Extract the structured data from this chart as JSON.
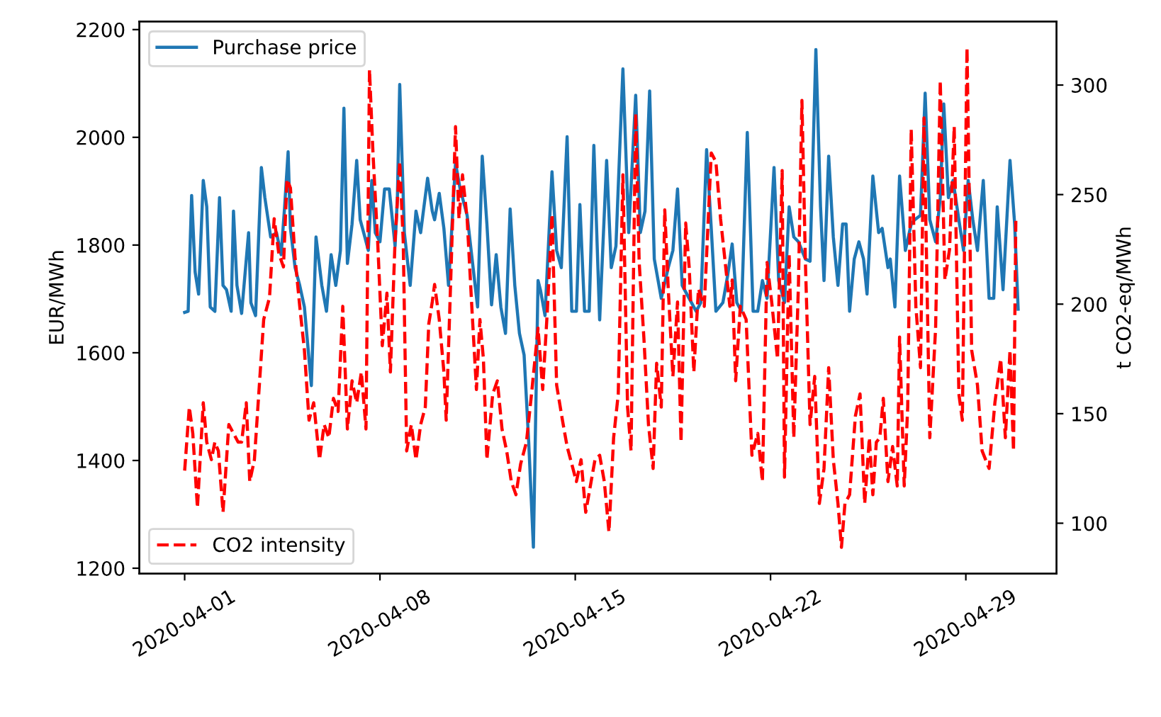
{
  "chart_data": {
    "type": "line",
    "ylabel": "EUR/MWh",
    "y2label": "t CO2-eq/MWh",
    "xlim": [
      "2020-03-30T09:00",
      "2020-05-02T06:00"
    ],
    "xticks": [
      "2020-04-01",
      "2020-04-08",
      "2020-04-15",
      "2020-04-22",
      "2020-04-29"
    ],
    "ylim": [
      1190,
      2215
    ],
    "yticks": [
      1200,
      1400,
      1600,
      1800,
      2000,
      2200
    ],
    "y2lim": [
      77,
      329
    ],
    "y2ticks": [
      100,
      150,
      200,
      250,
      300
    ],
    "grid": false,
    "legend": "left",
    "series": [
      {
        "name": "Purchase price",
        "color": "#1f77b4",
        "line_style": "solid",
        "axis": "y",
        "x": [
          "2020-04-01T00:00",
          "2020-04-01T03:00",
          "2020-04-01T06:00",
          "2020-04-01T09:00",
          "2020-04-01T12:00",
          "2020-04-01T16:00",
          "2020-04-01T19:00",
          "2020-04-01T22:00",
          "2020-04-02T02:00",
          "2020-04-02T06:00",
          "2020-04-02T09:00",
          "2020-04-02T12:00",
          "2020-04-02T16:00",
          "2020-04-02T18:00",
          "2020-04-02T21:00",
          "2020-04-03T01:00",
          "2020-04-03T07:00",
          "2020-04-03T09:00",
          "2020-04-03T13:00",
          "2020-04-03T18:00",
          "2020-04-03T21:00",
          "2020-04-04T02:00",
          "2020-04-04T07:00",
          "2020-04-04T11:00",
          "2020-04-04T14:00",
          "2020-04-04T17:00",
          "2020-04-04T19:00",
          "2020-04-04T23:00",
          "2020-04-05T03:00",
          "2020-04-05T07:00",
          "2020-04-05T13:00",
          "2020-04-05T17:00",
          "2020-04-05T22:00",
          "2020-04-06T02:00",
          "2020-04-06T06:00",
          "2020-04-06T10:00",
          "2020-04-06T14:00",
          "2020-04-06T17:00",
          "2020-04-06T20:00",
          "2020-04-07T00:00",
          "2020-04-07T04:00",
          "2020-04-07T07:00",
          "2020-04-07T10:00",
          "2020-04-07T14:00",
          "2020-04-07T17:00",
          "2020-04-07T20:00",
          "2020-04-08T00:00",
          "2020-04-08T04:00",
          "2020-04-08T08:00",
          "2020-04-08T13:00",
          "2020-04-08T15:00",
          "2020-04-08T17:00",
          "2020-04-08T21:00",
          "2020-04-09T02:00",
          "2020-04-09T07:00",
          "2020-04-09T11:00",
          "2020-04-09T17:00",
          "2020-04-09T21:00",
          "2020-04-09T23:00",
          "2020-04-10T03:00",
          "2020-04-10T07:00",
          "2020-04-10T11:00",
          "2020-04-10T17:00",
          "2020-04-10T21:00",
          "2020-04-11T03:00",
          "2020-04-11T12:00",
          "2020-04-11T16:00",
          "2020-04-11T20:00",
          "2020-04-12T00:00",
          "2020-04-12T04:00",
          "2020-04-12T08:00",
          "2020-04-12T12:00",
          "2020-04-12T16:00",
          "2020-04-12T20:00",
          "2020-04-13T00:00",
          "2020-04-13T04:00",
          "2020-04-13T08:00",
          "2020-04-13T12:00",
          "2020-04-13T16:00",
          "2020-04-13T18:00",
          "2020-04-13T22:00",
          "2020-04-14T04:00",
          "2020-04-14T08:00",
          "2020-04-14T12:00",
          "2020-04-14T17:00",
          "2020-04-14T21:00",
          "2020-04-15T01:00",
          "2020-04-15T04:00",
          "2020-04-15T08:00",
          "2020-04-15T12:00",
          "2020-04-15T16:00",
          "2020-04-15T21:00",
          "2020-04-16T03:00",
          "2020-04-16T07:00",
          "2020-04-16T11:00",
          "2020-04-16T17:00",
          "2020-04-16T22:00",
          "2020-04-17T04:00",
          "2020-04-17T08:00",
          "2020-04-17T12:00",
          "2020-04-17T16:00",
          "2020-04-17T20:00",
          "2020-04-18T02:00",
          "2020-04-18T08:00",
          "2020-04-18T12:00",
          "2020-04-18T16:00",
          "2020-04-18T20:00",
          "2020-04-19T02:00",
          "2020-04-19T08:00",
          "2020-04-19T12:00",
          "2020-04-19T17:00",
          "2020-04-19T21:00",
          "2020-04-20T01:00",
          "2020-04-20T07:00",
          "2020-04-20T11:00",
          "2020-04-20T15:00",
          "2020-04-20T19:00",
          "2020-04-20T23:00",
          "2020-04-21T04:00",
          "2020-04-21T09:00",
          "2020-04-21T13:00",
          "2020-04-21T17:00",
          "2020-04-21T21:00",
          "2020-04-22T03:00",
          "2020-04-22T07:00",
          "2020-04-22T12:00",
          "2020-04-22T16:00",
          "2020-04-22T20:00",
          "2020-04-23T00:00",
          "2020-04-23T06:00",
          "2020-04-23T10:00",
          "2020-04-23T15:00",
          "2020-04-23T19:00",
          "2020-04-23T22:00",
          "2020-04-24T02:00",
          "2020-04-24T06:00",
          "2020-04-24T10:00",
          "2020-04-24T14:00",
          "2020-04-24T17:00",
          "2020-04-24T20:00",
          "2020-04-25T00:00",
          "2020-04-25T04:00",
          "2020-04-25T08:00",
          "2020-04-25T11:00",
          "2020-04-25T16:00",
          "2020-04-25T21:00",
          "2020-04-26T00:00",
          "2020-04-26T05:00",
          "2020-04-26T07:00",
          "2020-04-26T11:00",
          "2020-04-26T15:00",
          "2020-04-26T20:00",
          "2020-04-27T01:00",
          "2020-04-27T04:00",
          "2020-04-27T09:00",
          "2020-04-27T13:00",
          "2020-04-27T17:00",
          "2020-04-27T22:00",
          "2020-04-28T02:00",
          "2020-04-28T05:00",
          "2020-04-28T09:00",
          "2020-04-28T13:00",
          "2020-04-28T18:00",
          "2020-04-28T22:00",
          "2020-04-29T02:00",
          "2020-04-29T06:00",
          "2020-04-29T10:00",
          "2020-04-29T15:00",
          "2020-04-29T20:00",
          "2020-04-30T00:00",
          "2020-04-30T03:00",
          "2020-04-30T08:00",
          "2020-04-30T14:00",
          "2020-04-30T18:00",
          "2020-04-30T21:00"
        ],
        "values": [
          1675,
          1677,
          1892,
          1750,
          1709,
          1920,
          1871,
          1685,
          1677,
          1888,
          1725,
          1717,
          1677,
          1863,
          1725,
          1673,
          1823,
          1693,
          1669,
          1944,
          1888,
          1815,
          1823,
          1782,
          1871,
          1973,
          1831,
          1758,
          1725,
          1685,
          1539,
          1815,
          1725,
          1677,
          1782,
          1725,
          1790,
          2054,
          1766,
          1839,
          1957,
          1847,
          1823,
          1790,
          1920,
          1823,
          1806,
          1904,
          1904,
          1798,
          1888,
          2098,
          1823,
          1725,
          1863,
          1823,
          1924,
          1863,
          1847,
          1896,
          1831,
          1725,
          1952,
          1904,
          1855,
          1685,
          1965,
          1839,
          1689,
          1782,
          1685,
          1636,
          1867,
          1725,
          1636,
          1596,
          1433,
          1239,
          1734,
          1717,
          1669,
          1936,
          1790,
          1758,
          2001,
          1677,
          1677,
          1875,
          1677,
          1677,
          1985,
          1661,
          1957,
          1758,
          1798,
          2127,
          1823,
          2078,
          1823,
          1863,
          2086,
          1774,
          1701,
          1758,
          1790,
          1904,
          1725,
          1701,
          1677,
          1693,
          1977,
          1831,
          1677,
          1693,
          1742,
          1802,
          1693,
          1677,
          2009,
          1677,
          1677,
          1734,
          1701,
          1944,
          1734,
          1693,
          1871,
          1815,
          1806,
          1774,
          1770,
          2163,
          1871,
          1734,
          1965,
          1815,
          1725,
          1839,
          1839,
          1677,
          1774,
          1806,
          1774,
          1709,
          1928,
          1823,
          1831,
          1758,
          1774,
          1685,
          1928,
          1790,
          1839,
          1847,
          1855,
          2082,
          1847,
          1806,
          1888,
          2062,
          1888,
          1920,
          1847,
          1790,
          1920,
          1847,
          1790,
          1920,
          1701,
          1701,
          1871,
          1717,
          1957,
          1839,
          1681
        ]
      },
      {
        "name": "CO2 intensity",
        "color": "#ff0000",
        "line_style": "dashed",
        "axis": "y2",
        "x": [
          "2020-04-01T00:00",
          "2020-04-01T04:00",
          "2020-04-01T07:00",
          "2020-04-01T11:00",
          "2020-04-01T16:00",
          "2020-04-01T19:00",
          "2020-04-01T23:00",
          "2020-04-02T02:00",
          "2020-04-02T05:00",
          "2020-04-02T09:00",
          "2020-04-02T14:00",
          "2020-04-02T18:00",
          "2020-04-02T22:00",
          "2020-04-03T01:00",
          "2020-04-03T05:00",
          "2020-04-03T08:00",
          "2020-04-03T12:00",
          "2020-04-03T17:00",
          "2020-04-03T20:00",
          "2020-04-04T01:00",
          "2020-04-04T05:00",
          "2020-04-04T09:00",
          "2020-04-04T13:00",
          "2020-04-04T16:00",
          "2020-04-04T19:00",
          "2020-04-04T23:00",
          "2020-04-05T03:00",
          "2020-04-05T07:00",
          "2020-04-05T11:00",
          "2020-04-05T15:00",
          "2020-04-05T20:00",
          "2020-04-06T00:00",
          "2020-04-06T04:00",
          "2020-04-06T08:00",
          "2020-04-06T12:00",
          "2020-04-06T16:00",
          "2020-04-06T20:00",
          "2020-04-07T00:00",
          "2020-04-07T04:00",
          "2020-04-07T08:00",
          "2020-04-07T12:00",
          "2020-04-07T15:00",
          "2020-04-07T18:00",
          "2020-04-07T22:00",
          "2020-04-08T02:00",
          "2020-04-08T06:00",
          "2020-04-08T09:00",
          "2020-04-08T13:00",
          "2020-04-08T17:00",
          "2020-04-08T20:00",
          "2020-04-08T23:00",
          "2020-04-09T03:00",
          "2020-04-09T07:00",
          "2020-04-09T11:00",
          "2020-04-09T15:00",
          "2020-04-09T18:00",
          "2020-04-09T21:00",
          "2020-04-09T23:00",
          "2020-04-10T03:00",
          "2020-04-10T07:00",
          "2020-04-10T09:00",
          "2020-04-10T13:00",
          "2020-04-10T17:00",
          "2020-04-10T20:00",
          "2020-04-10T23:00",
          "2020-04-11T03:00",
          "2020-04-11T07:00",
          "2020-04-11T11:00",
          "2020-04-11T14:00",
          "2020-04-11T17:00",
          "2020-04-11T20:00",
          "2020-04-12T01:00",
          "2020-04-12T05:00",
          "2020-04-12T09:00",
          "2020-04-12T13:00",
          "2020-04-12T17:00",
          "2020-04-12T21:00",
          "2020-04-13T01:00",
          "2020-04-13T06:00",
          "2020-04-13T10:00",
          "2020-04-13T16:00",
          "2020-04-13T20:00",
          "2020-04-14T00:00",
          "2020-04-14T04:00",
          "2020-04-14T08:00",
          "2020-04-14T13:00",
          "2020-04-14T17:00",
          "2020-04-14T21:00",
          "2020-04-15T01:00",
          "2020-04-15T05:00",
          "2020-04-15T09:00",
          "2020-04-15T13:00",
          "2020-04-15T17:00",
          "2020-04-15T21:00",
          "2020-04-16T01:00",
          "2020-04-16T05:00",
          "2020-04-16T09:00",
          "2020-04-16T13:00",
          "2020-04-16T17:00",
          "2020-04-16T21:00",
          "2020-04-17T00:00",
          "2020-04-17T04:00",
          "2020-04-17T07:00",
          "2020-04-17T11:00",
          "2020-04-17T15:00",
          "2020-04-17T19:00",
          "2020-04-17T22:00",
          "2020-04-18T02:00",
          "2020-04-18T05:00",
          "2020-04-18T08:00",
          "2020-04-18T12:00",
          "2020-04-18T16:00",
          "2020-04-18T19:00",
          "2020-04-18T23:00",
          "2020-04-19T02:00",
          "2020-04-19T06:00",
          "2020-04-19T10:00",
          "2020-04-19T15:00",
          "2020-04-19T21:00",
          "2020-04-20T01:00",
          "2020-04-20T05:00",
          "2020-04-20T09:00",
          "2020-04-20T13:00",
          "2020-04-20T15:00",
          "2020-04-20T18:00",
          "2020-04-20T22:00",
          "2020-04-21T03:00",
          "2020-04-21T08:00",
          "2020-04-21T13:00",
          "2020-04-21T17:00",
          "2020-04-21T21:00",
          "2020-04-22T01:00",
          "2020-04-22T06:00",
          "2020-04-22T10:00",
          "2020-04-22T12:00",
          "2020-04-22T16:00",
          "2020-04-22T20:00",
          "2020-04-23T00:00",
          "2020-04-23T03:00",
          "2020-04-23T06:00",
          "2020-04-23T10:00",
          "2020-04-23T14:00",
          "2020-04-23T18:00",
          "2020-04-23T22:00",
          "2020-04-24T02:00",
          "2020-04-24T06:00",
          "2020-04-24T10:00",
          "2020-04-24T13:00",
          "2020-04-24T16:00",
          "2020-04-24T20:00",
          "2020-04-25T01:00",
          "2020-04-25T05:00",
          "2020-04-25T09:00",
          "2020-04-25T13:00",
          "2020-04-25T16:00",
          "2020-04-25T19:00",
          "2020-04-25T22:00",
          "2020-04-26T01:00",
          "2020-04-26T05:00",
          "2020-04-26T09:00",
          "2020-04-26T13:00",
          "2020-04-26T15:00",
          "2020-04-26T19:00",
          "2020-04-26T22:00",
          "2020-04-27T01:00",
          "2020-04-27T05:00",
          "2020-04-27T09:00",
          "2020-04-27T12:00",
          "2020-04-27T17:00",
          "2020-04-27T22:00",
          "2020-04-28T02:00",
          "2020-04-28T06:00",
          "2020-04-28T10:00",
          "2020-04-28T14:00",
          "2020-04-28T18:00",
          "2020-04-28T21:00",
          "2020-04-29T01:00",
          "2020-04-29T05:00",
          "2020-04-29T10:00",
          "2020-04-29T14:00",
          "2020-04-29T20:00",
          "2020-04-30T01:00",
          "2020-04-30T06:00",
          "2020-04-30T10:00",
          "2020-04-30T14:00",
          "2020-04-30T17:00",
          "2020-04-30T19:00"
        ],
        "values": [
          124,
          153,
          141,
          107,
          155,
          137,
          129,
          137,
          133,
          105,
          145,
          141,
          137,
          137,
          155,
          119,
          129,
          169,
          193,
          203,
          239,
          223,
          217,
          257,
          253,
          221,
          199,
          179,
          147,
          155,
          129,
          145,
          139,
          157,
          151,
          199,
          143,
          165,
          155,
          169,
          143,
          307,
          269,
          229,
          181,
          205,
          169,
          229,
          265,
          229,
          133,
          145,
          129,
          145,
          153,
          191,
          201,
          209,
          193,
          169,
          147,
          213,
          281,
          239,
          259,
          239,
          199,
          161,
          193,
          175,
          129,
          159,
          165,
          143,
          133,
          119,
          113,
          127,
          137,
          157,
          189,
          161,
          197,
          241,
          163,
          147,
          135,
          127,
          119,
          129,
          105,
          117,
          129,
          131,
          119,
          96,
          139,
          159,
          259,
          153,
          133,
          287,
          219,
          185,
          145,
          125,
          173,
          153,
          243,
          207,
          167,
          201,
          137,
          237,
          217,
          169,
          207,
          199,
          269,
          265,
          239,
          219,
          199,
          211,
          165,
          199,
          193,
          131,
          141,
          119,
          219,
          201,
          175,
          261,
          121,
          223,
          139,
          209,
          293,
          219,
          145,
          167,
          109,
          125,
          171,
          129,
          109,
          89,
          109,
          113,
          149,
          159,
          109,
          139,
          113,
          137,
          139,
          157,
          119,
          135,
          117,
          185,
          117,
          153,
          280,
          199,
          171,
          285,
          139,
          189,
          302,
          211,
          225,
          281,
          159,
          147,
          317,
          179,
          163,
          133,
          125,
          155,
          175,
          139,
          179,
          133,
          238
        ]
      }
    ]
  }
}
